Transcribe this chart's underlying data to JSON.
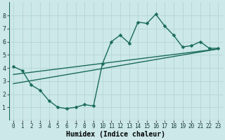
{
  "title": "",
  "xlabel": "Humidex (Indice chaleur)",
  "bg_color": "#cce8e8",
  "grid_color": "#b8d8d8",
  "line_color": "#1a6b5a",
  "xlim": [
    -0.5,
    23.5
  ],
  "ylim": [
    0,
    9
  ],
  "xticks": [
    0,
    1,
    2,
    3,
    4,
    5,
    6,
    7,
    8,
    9,
    10,
    11,
    12,
    13,
    14,
    15,
    16,
    17,
    18,
    19,
    20,
    21,
    22,
    23
  ],
  "yticks": [
    1,
    2,
    3,
    4,
    5,
    6,
    7,
    8
  ],
  "line1_x": [
    0,
    1,
    2,
    3,
    4,
    5,
    6,
    7,
    8,
    9,
    10,
    11,
    12,
    13,
    14,
    15,
    16,
    17,
    18,
    19,
    20,
    21,
    22,
    23
  ],
  "line1_y": [
    4.1,
    3.8,
    2.7,
    2.3,
    1.5,
    1.0,
    0.9,
    1.0,
    1.2,
    1.1,
    4.3,
    6.0,
    6.5,
    5.9,
    7.5,
    7.4,
    8.1,
    7.2,
    6.5,
    5.6,
    5.7,
    6.0,
    5.5,
    5.5
  ],
  "line2_x": [
    0,
    23
  ],
  "line2_y": [
    3.5,
    5.45
  ],
  "line3_x": [
    0,
    23
  ],
  "line3_y": [
    2.8,
    5.45
  ],
  "figsize": [
    3.2,
    2.0
  ],
  "dpi": 100,
  "marker_size": 2.5,
  "linewidth": 1.0,
  "tick_fontsize": 5.5,
  "xlabel_fontsize": 7.0
}
